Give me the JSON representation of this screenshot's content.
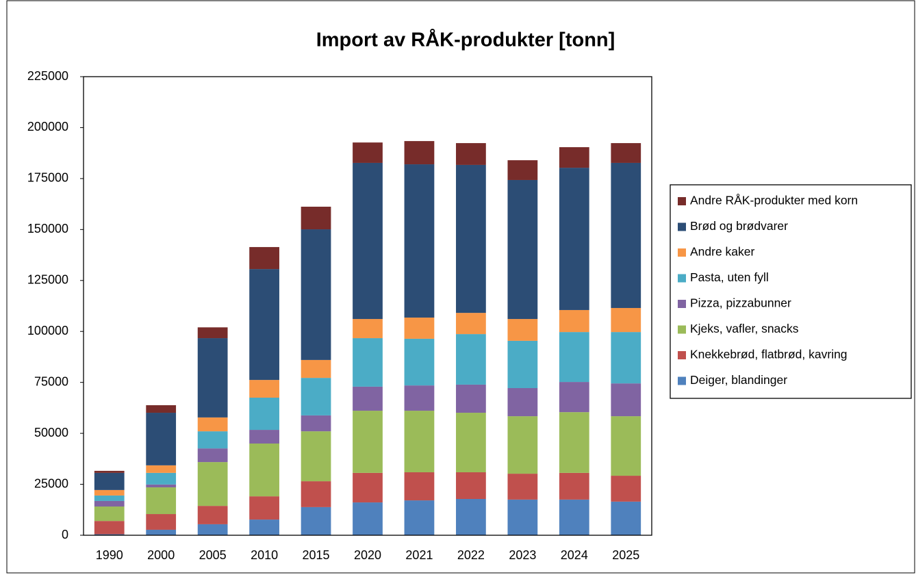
{
  "chart_data": {
    "type": "stacked-bar",
    "title": "Import av RÅK-produkter [tonn]",
    "categories": [
      "1990",
      "2000",
      "2005",
      "2010",
      "2015",
      "2020",
      "2021",
      "2022",
      "2023",
      "2024",
      "2025"
    ],
    "series": [
      {
        "name": "Deiger, blandinger",
        "color": "#4f81bd",
        "values": [
          500,
          2700,
          5400,
          7700,
          13800,
          16100,
          17100,
          17800,
          17500,
          17500,
          16500
        ]
      },
      {
        "name": "Knekkebrød, flatbrød, kavring",
        "color": "#c0504d",
        "values": [
          6500,
          7700,
          9000,
          11400,
          12700,
          14500,
          13800,
          13100,
          12700,
          13100,
          12700
        ]
      },
      {
        "name": "Kjeks, vafler, snacks",
        "color": "#9bbb59",
        "values": [
          7100,
          13100,
          21500,
          25900,
          24500,
          30500,
          30200,
          29200,
          28200,
          29800,
          29200
        ]
      },
      {
        "name": "Pizza, pizzabunner",
        "color": "#8064a2",
        "values": [
          2700,
          1400,
          6700,
          6700,
          7800,
          11800,
          12400,
          13800,
          13800,
          14800,
          16100
        ]
      },
      {
        "name": "Pasta, uten fyll",
        "color": "#4bacc6",
        "values": [
          2700,
          5700,
          8400,
          15800,
          18400,
          23800,
          22900,
          24800,
          23200,
          24500,
          25200
        ]
      },
      {
        "name": "Andre kaker",
        "color": "#f79646",
        "values": [
          2700,
          3700,
          6800,
          8700,
          8800,
          9400,
          10400,
          10400,
          10700,
          10800,
          11800
        ]
      },
      {
        "name": "Brød og brødvarer",
        "color": "#2c4d75",
        "values": [
          8400,
          25800,
          38900,
          54400,
          64100,
          76600,
          75200,
          72600,
          68200,
          69800,
          71200
        ]
      },
      {
        "name": "Andre RÅK-produkter med korn",
        "color": "#772c2a",
        "values": [
          1000,
          3700,
          5300,
          10800,
          11100,
          10000,
          11400,
          10700,
          9700,
          10100,
          9700
        ]
      }
    ],
    "ylim": [
      0,
      225000
    ],
    "yticks": [
      0,
      25000,
      50000,
      75000,
      100000,
      125000,
      150000,
      175000,
      200000,
      225000
    ],
    "grid": false,
    "legend": "right"
  }
}
